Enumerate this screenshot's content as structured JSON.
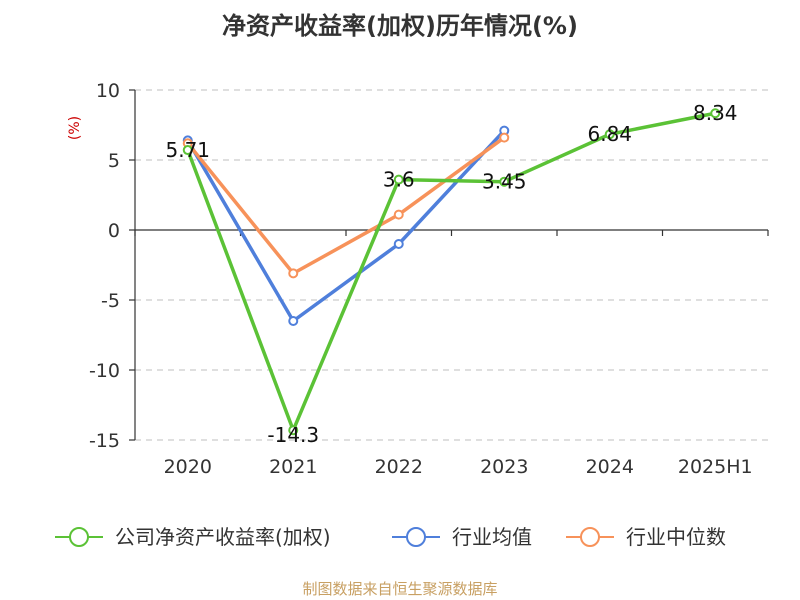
{
  "chart_data": {
    "type": "line",
    "title": "净资产收益率(加权)历年情况(%)",
    "ylabel": "(%)",
    "categories": [
      "2020",
      "2021",
      "2022",
      "2023",
      "2024",
      "2025H1"
    ],
    "ylim": [
      -15,
      10
    ],
    "yticks": [
      10,
      5,
      0,
      -5,
      -10,
      -15
    ],
    "ytick_labels": [
      "10",
      "5",
      "0",
      "-5",
      "-10",
      "-15"
    ],
    "grid": true,
    "legend_position": "bottom",
    "series": [
      {
        "name": "公司净资产收益率(加权)",
        "color": "#5bc236",
        "values": [
          5.71,
          -14.3,
          3.6,
          3.45,
          6.84,
          8.34
        ],
        "labels": [
          "5.71",
          "-14.3",
          "3.6",
          "3.45",
          "6.84",
          "8.34"
        ]
      },
      {
        "name": "行业均值",
        "color": "#4f7fdb",
        "values": [
          6.4,
          -6.5,
          -1.0,
          7.1,
          null,
          null
        ]
      },
      {
        "name": "行业中位数",
        "color": "#f7925a",
        "values": [
          6.2,
          -3.1,
          1.1,
          6.6,
          null,
          null
        ]
      }
    ]
  },
  "source": "制图数据来自恒生聚源数据库",
  "colors": {
    "grid": "#cccccc",
    "axis": "#333333",
    "ylabel": "#cc0000",
    "source": "#c8a063"
  }
}
